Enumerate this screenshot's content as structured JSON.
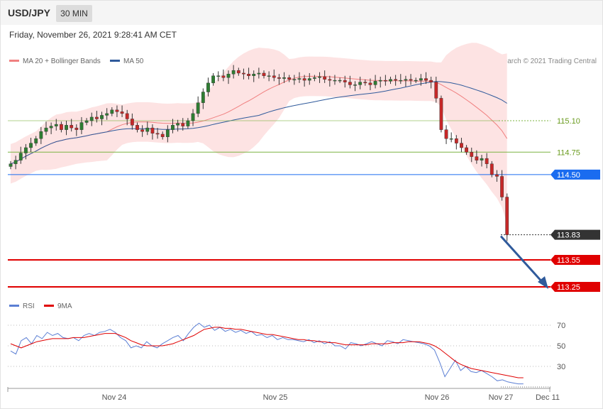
{
  "header": {
    "symbol": "USD/JPY",
    "timeframe": "30 MIN"
  },
  "datetime": "Friday, November 26, 2021 9:28:41 AM CET",
  "legend": [
    {
      "label": "MA 20 + Bollinger Bands",
      "color": "#f08080"
    },
    {
      "label": "MA 50",
      "color": "#2f5a9b"
    }
  ],
  "credit": "Research © 2021 Trading Central",
  "rsi_legend": [
    {
      "label": "RSI",
      "color": "#5b7fd4"
    },
    {
      "label": "9MA",
      "color": "#e00000"
    }
  ],
  "chart_data": [
    {
      "type": "candlestick",
      "title": "USD/JPY 30 MIN",
      "x_ticks": [
        "Nov 24",
        "Nov 25",
        "Nov 26",
        "Nov 27",
        "Dec 11"
      ],
      "y_range": [
        113.1,
        115.5
      ],
      "levels": [
        {
          "value": 115.1,
          "label": "115.10",
          "color": "#7cb342",
          "style": "dotted"
        },
        {
          "value": 114.75,
          "label": "114.75",
          "color": "#7cb342",
          "style": "solid"
        },
        {
          "value": 114.5,
          "label": "114.50",
          "color": "#1a6cf0",
          "style": "solid",
          "badge": true
        },
        {
          "value": 113.83,
          "label": "113.83",
          "color": "#333333",
          "style": "dotted",
          "badge": true,
          "current": true
        },
        {
          "value": 113.55,
          "label": "113.55",
          "color": "#e00000",
          "style": "solid",
          "badge": true
        },
        {
          "value": 113.25,
          "label": "113.25",
          "color": "#e00000",
          "style": "solid",
          "badge": true
        }
      ],
      "closes": [
        114.62,
        114.66,
        114.74,
        114.8,
        114.85,
        114.9,
        114.98,
        115.02,
        115.04,
        115.06,
        115.0,
        115.05,
        115.02,
        115.0,
        115.08,
        115.1,
        115.14,
        115.12,
        115.16,
        115.18,
        115.22,
        115.2,
        115.18,
        115.12,
        115.05,
        115.0,
        114.98,
        115.02,
        114.96,
        114.95,
        114.92,
        115.0,
        115.05,
        115.07,
        115.04,
        115.1,
        115.18,
        115.3,
        115.42,
        115.52,
        115.6,
        115.6,
        115.58,
        115.62,
        115.66,
        115.63,
        115.62,
        115.6,
        115.62,
        115.63,
        115.6,
        115.6,
        115.58,
        115.57,
        115.58,
        115.56,
        115.56,
        115.57,
        115.55,
        115.57,
        115.58,
        115.59,
        115.56,
        115.55,
        115.55,
        115.55,
        115.53,
        115.5,
        115.5,
        115.53,
        115.52,
        115.5,
        115.54,
        115.55,
        115.54,
        115.56,
        115.55,
        115.55,
        115.56,
        115.55,
        115.55,
        115.57,
        115.55,
        115.53,
        115.35,
        115.0,
        114.9,
        114.9,
        114.85,
        114.8,
        114.75,
        114.7,
        114.66,
        114.68,
        114.62,
        114.5,
        114.48,
        114.25,
        113.83
      ],
      "ma20_note": "MA 20 + Bollinger Bands shown as shaded band",
      "forecast_arrow": {
        "from": 113.83,
        "to": 113.25
      }
    },
    {
      "type": "line",
      "title": "RSI",
      "y_ticks": [
        70,
        50,
        30
      ],
      "series": [
        {
          "name": "RSI",
          "values": [
            45,
            42,
            55,
            58,
            52,
            60,
            57,
            63,
            60,
            62,
            58,
            57,
            58,
            55,
            60,
            62,
            60,
            63,
            64,
            66,
            63,
            58,
            55,
            48,
            50,
            48,
            54,
            50,
            48,
            52,
            55,
            58,
            60,
            55,
            62,
            68,
            72,
            68,
            70,
            65,
            68,
            64,
            66,
            63,
            65,
            62,
            64,
            60,
            61,
            58,
            60,
            56,
            58,
            56,
            56,
            55,
            54,
            56,
            53,
            55,
            52,
            54,
            50,
            50,
            47,
            53,
            52,
            50,
            52,
            54,
            52,
            50,
            55,
            54,
            52,
            56,
            55,
            54,
            53,
            52,
            50,
            46,
            34,
            20,
            28,
            36,
            26,
            30,
            25,
            24,
            26,
            23,
            20,
            16,
            17,
            15,
            14,
            13,
            13
          ]
        },
        {
          "name": "9MA",
          "values": [
            52,
            50,
            48,
            50,
            52,
            54,
            55,
            56,
            57,
            57,
            57,
            57,
            58,
            58,
            58,
            59,
            60,
            61,
            62,
            62,
            62,
            60,
            58,
            55,
            53,
            51,
            50,
            50,
            50,
            50,
            51,
            52,
            54,
            56,
            58,
            60,
            63,
            66,
            67,
            68,
            68,
            67,
            67,
            66,
            66,
            65,
            64,
            63,
            62,
            61,
            61,
            60,
            59,
            58,
            57,
            56,
            56,
            55,
            55,
            54,
            54,
            53,
            53,
            52,
            51,
            51,
            51,
            51,
            51,
            52,
            52,
            52,
            52,
            53,
            53,
            53,
            54,
            54,
            54,
            53,
            52,
            50,
            47,
            43,
            39,
            35,
            32,
            30,
            28,
            27,
            26,
            25,
            24,
            23,
            22,
            21,
            20,
            19,
            19
          ]
        }
      ]
    }
  ]
}
